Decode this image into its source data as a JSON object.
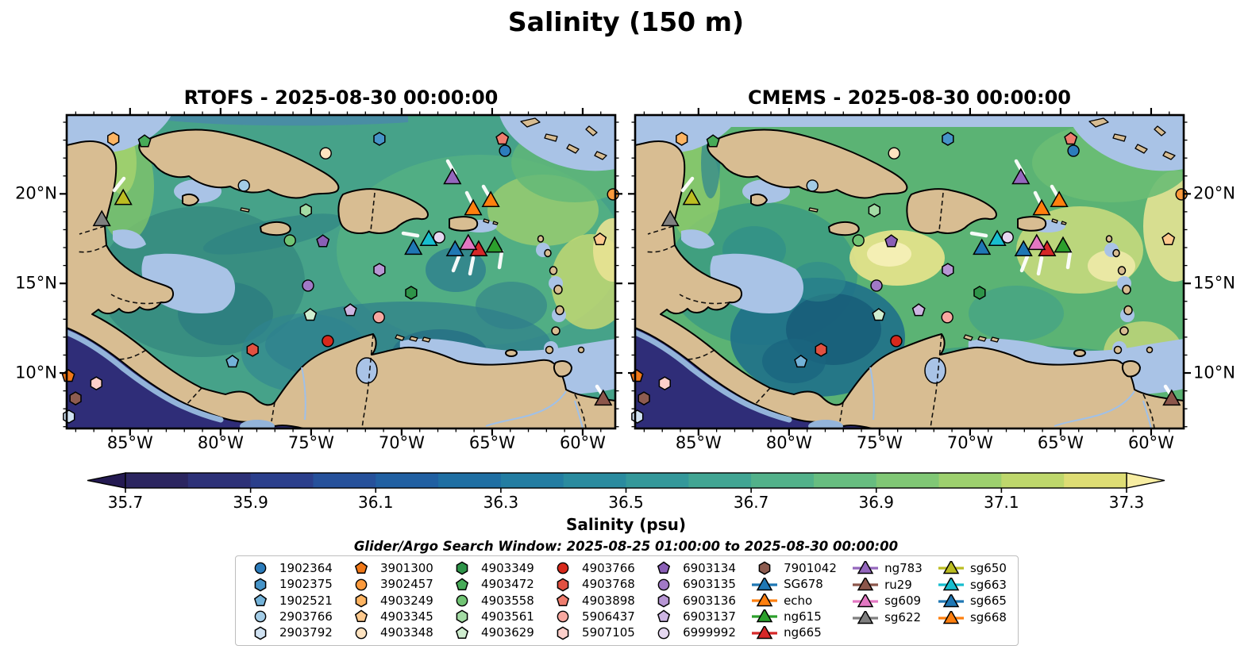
{
  "title": "Salinity (150 m)",
  "panels": [
    {
      "id": "rtofs",
      "title": "RTOFS - 2025-08-30 00:00:00"
    },
    {
      "id": "cmems",
      "title": "CMEMS - 2025-08-30 00:00:00"
    }
  ],
  "axes": {
    "lon_min": 88.5,
    "lon_max": 58.2,
    "lat_min": 6.9,
    "lat_max": 24.4,
    "xticks": [
      {
        "label": "85°W",
        "value": 85
      },
      {
        "label": "80°W",
        "value": 80
      },
      {
        "label": "75°W",
        "value": 75
      },
      {
        "label": "70°W",
        "value": 70
      },
      {
        "label": "65°W",
        "value": 65
      },
      {
        "label": "60°W",
        "value": 60
      }
    ],
    "yticks": [
      {
        "label": "20°N",
        "value": 20
      },
      {
        "label": "15°N",
        "value": 15
      },
      {
        "label": "10°N",
        "value": 10
      }
    ]
  },
  "colorbar": {
    "label": "Salinity (psu)",
    "ticks": [
      "35.7",
      "35.9",
      "36.1",
      "36.3",
      "36.5",
      "36.7",
      "36.9",
      "37.1",
      "37.3"
    ],
    "segment_colors": [
      "#2b2560",
      "#2d3178",
      "#2b3f8c",
      "#26519b",
      "#2160a2",
      "#1f6fa3",
      "#237da2",
      "#2a8b9f",
      "#34989a",
      "#41a593",
      "#52b18a",
      "#67bd80",
      "#80c775",
      "#9dd06e",
      "#bed76c",
      "#dedd74"
    ],
    "under_color": "#241a52",
    "over_color": "#f7eda2"
  },
  "legend": {
    "title": "Glider/Argo Search Window: 2025-08-25 01:00:00 to 2025-08-30 00:00:00",
    "columns": [
      [
        "1902364",
        "1902375",
        "1902521",
        "2903766",
        "2903792"
      ],
      [
        "3901300",
        "3902457",
        "4903249",
        "4903345",
        "4903348"
      ],
      [
        "4903349",
        "4903472",
        "4903558",
        "4903561",
        "4903629"
      ],
      [
        "4903766",
        "4903768",
        "4903898",
        "5906437",
        "5907105"
      ],
      [
        "6903134",
        "6903135",
        "6903136",
        "6903137",
        "6999992"
      ],
      [
        "7901042",
        "SG678",
        "echo",
        "ng615",
        "ng665"
      ],
      [
        "ng783",
        "ru29",
        "sg609",
        "sg622"
      ],
      [
        "sg650",
        "sg663",
        "sg665",
        "sg668"
      ]
    ]
  },
  "markers": [
    {
      "id": "1902364",
      "type": "argo",
      "shape": "circle",
      "color": "#2c7cbb",
      "fx": 0.799,
      "fy": 0.114,
      "lon": -64.3,
      "lat": 22.4
    },
    {
      "id": "1902375",
      "type": "argo",
      "shape": "hexagon",
      "color": "#4694c8",
      "fx": 0.57,
      "fy": 0.076,
      "lon": -71.2,
      "lat": 23.1
    },
    {
      "id": "1902521",
      "type": "argo",
      "shape": "pentagon",
      "color": "#73b2d8",
      "fx": 0.302,
      "fy": 0.787,
      "lon": -79.3,
      "lat": 10.6
    },
    {
      "id": "2903766",
      "type": "argo",
      "shape": "circle",
      "color": "#a3cce6",
      "fx": 0.323,
      "fy": 0.225,
      "lon": -78.7,
      "lat": 20.5
    },
    {
      "id": "2903792",
      "type": "argo",
      "shape": "hexagon",
      "color": "#d0e2f2",
      "fx": 0.004,
      "fy": 0.962,
      "lon": -88.4,
      "lat": 7.6
    },
    {
      "id": "3901300",
      "type": "argo",
      "shape": "pentagon",
      "color": "#f07818",
      "fx": 0.003,
      "fy": 0.833,
      "lon": -88.4,
      "lat": 9.8
    },
    {
      "id": "3902457",
      "type": "argo",
      "shape": "circle",
      "color": "#fb9a3c",
      "fx": 0.996,
      "fy": 0.253,
      "lon": -58.3,
      "lat": 20.0
    },
    {
      "id": "4903249",
      "type": "argo",
      "shape": "hexagon",
      "color": "#fdb462",
      "fx": 0.085,
      "fy": 0.076,
      "lon": -85.9,
      "lat": 23.1
    },
    {
      "id": "4903345",
      "type": "argo",
      "shape": "pentagon",
      "color": "#fdc98d",
      "fx": 0.972,
      "fy": 0.397,
      "lon": -59.1,
      "lat": 17.5
    },
    {
      "id": "4903348",
      "type": "argo",
      "shape": "circle",
      "color": "#fee3c0",
      "fx": 0.472,
      "fy": 0.122,
      "lon": -74.2,
      "lat": 22.3
    },
    {
      "id": "4903349",
      "type": "argo",
      "shape": "hexagon",
      "color": "#2e9449",
      "fx": 0.628,
      "fy": 0.567,
      "lon": -69.5,
      "lat": 14.5
    },
    {
      "id": "4903472",
      "type": "argo",
      "shape": "pentagon",
      "color": "#47ab58",
      "fx": 0.142,
      "fy": 0.084,
      "lon": -84.2,
      "lat": 22.9
    },
    {
      "id": "4903558",
      "type": "argo",
      "shape": "circle",
      "color": "#71c474",
      "fx": 0.407,
      "fy": 0.4,
      "lon": -76.2,
      "lat": 17.4
    },
    {
      "id": "4903561",
      "type": "argo",
      "shape": "hexagon",
      "color": "#a3dba4",
      "fx": 0.436,
      "fy": 0.304,
      "lon": -75.3,
      "lat": 19.1
    },
    {
      "id": "4903629",
      "type": "argo",
      "shape": "pentagon",
      "color": "#d0eed0",
      "fx": 0.444,
      "fy": 0.638,
      "lon": -75.0,
      "lat": 13.2
    },
    {
      "id": "4903766",
      "type": "argo",
      "shape": "circle",
      "color": "#d7291c",
      "fx": 0.476,
      "fy": 0.721,
      "lon": -74.1,
      "lat": 11.8
    },
    {
      "id": "4903768",
      "type": "argo",
      "shape": "hexagon",
      "color": "#e25141",
      "fx": 0.339,
      "fy": 0.749,
      "lon": -78.2,
      "lat": 11.3
    },
    {
      "id": "4903898",
      "type": "argo",
      "shape": "pentagon",
      "color": "#ef7d6e",
      "fx": 0.794,
      "fy": 0.076,
      "lon": -64.4,
      "lat": 23.1
    },
    {
      "id": "5906437",
      "type": "argo",
      "shape": "circle",
      "color": "#f8a8a0",
      "fx": 0.569,
      "fy": 0.645,
      "lon": -71.3,
      "lat": 13.1
    },
    {
      "id": "5907105",
      "type": "argo",
      "shape": "hexagon",
      "color": "#fccfca",
      "fx": 0.054,
      "fy": 0.856,
      "lon": -86.9,
      "lat": 9.4
    },
    {
      "id": "6903134",
      "type": "argo",
      "shape": "pentagon",
      "color": "#8a5fb6",
      "fx": 0.467,
      "fy": 0.403,
      "lon": -74.3,
      "lat": 17.3
    },
    {
      "id": "6903135",
      "type": "argo",
      "shape": "circle",
      "color": "#a179c6",
      "fx": 0.44,
      "fy": 0.544,
      "lon": -75.2,
      "lat": 14.9
    },
    {
      "id": "6903136",
      "type": "argo",
      "shape": "hexagon",
      "color": "#b796d4",
      "fx": 0.57,
      "fy": 0.494,
      "lon": -71.2,
      "lat": 15.8
    },
    {
      "id": "6903137",
      "type": "argo",
      "shape": "pentagon",
      "color": "#cdb5e2",
      "fx": 0.517,
      "fy": 0.623,
      "lon": -72.8,
      "lat": 13.5
    },
    {
      "id": "6999992",
      "type": "argo",
      "shape": "circle",
      "color": "#e5d7f0",
      "fx": 0.679,
      "fy": 0.39,
      "lon": -67.9,
      "lat": 17.6
    },
    {
      "id": "7901042",
      "type": "argo",
      "shape": "hexagon",
      "color": "#8d5c50",
      "fx": 0.016,
      "fy": 0.904,
      "lon": -88.0,
      "lat": 8.6
    },
    {
      "id": "SG678",
      "type": "glider",
      "shape": "triangle",
      "color": "#1f77b4",
      "fx": 0.632,
      "fy": 0.425,
      "lon": -69.4,
      "lat": 17.0
    },
    {
      "id": "echo",
      "type": "glider",
      "shape": "triangle",
      "color": "#ff7f0e",
      "fx": 0.741,
      "fy": 0.299,
      "lon": -66.0,
      "lat": 19.2
    },
    {
      "id": "ng615",
      "type": "glider",
      "shape": "triangle",
      "color": "#2ca02c",
      "fx": 0.78,
      "fy": 0.418,
      "lon": -64.9,
      "lat": 17.1
    },
    {
      "id": "ng665",
      "type": "glider",
      "shape": "triangle",
      "color": "#d62728",
      "fx": 0.751,
      "fy": 0.43,
      "lon": -65.8,
      "lat": 16.9
    },
    {
      "id": "ng783",
      "type": "glider",
      "shape": "triangle",
      "color": "#9467bd",
      "fx": 0.703,
      "fy": 0.2,
      "lon": -67.2,
      "lat": 20.9
    },
    {
      "id": "ru29",
      "type": "glider",
      "shape": "triangle",
      "color": "#8c564b",
      "fx": 0.978,
      "fy": 0.906,
      "lon": -58.9,
      "lat": 8.5
    },
    {
      "id": "sg609",
      "type": "glider",
      "shape": "triangle",
      "color": "#e377c2",
      "fx": 0.732,
      "fy": 0.41,
      "lon": -66.3,
      "lat": 17.2
    },
    {
      "id": "sg622",
      "type": "glider",
      "shape": "triangle",
      "color": "#7f7f7f",
      "fx": 0.064,
      "fy": 0.334,
      "lon": -86.6,
      "lat": 18.5
    },
    {
      "id": "sg650",
      "type": "glider",
      "shape": "triangle",
      "color": "#bcbd22",
      "fx": 0.103,
      "fy": 0.266,
      "lon": -85.4,
      "lat": 19.7
    },
    {
      "id": "sg663",
      "type": "glider",
      "shape": "triangle",
      "color": "#17becf",
      "fx": 0.66,
      "fy": 0.397,
      "lon": -68.5,
      "lat": 17.5
    },
    {
      "id": "sg665",
      "type": "glider",
      "shape": "triangle",
      "color": "#1f77b4",
      "fx": 0.708,
      "fy": 0.43,
      "lon": -67.1,
      "lat": 16.9
    },
    {
      "id": "sg668",
      "type": "glider",
      "shape": "triangle",
      "color": "#ff7f0e",
      "fx": 0.773,
      "fy": 0.273,
      "lon": -65.1,
      "lat": 19.6
    }
  ],
  "chart_data": {
    "type": "heatmap",
    "title": "Salinity (150 m)",
    "subtitle_left": "RTOFS - 2025-08-30 00:00:00",
    "subtitle_right": "CMEMS - 2025-08-30 00:00:00",
    "variable": "Salinity (psu)",
    "colorbar_ticks": [
      35.7,
      35.9,
      36.1,
      36.3,
      36.5,
      36.7,
      36.9,
      37.1,
      37.3
    ],
    "colorbar_range": [
      35.7,
      37.3
    ],
    "colorbar_extended_both_ends": true,
    "lon_range_degW": [
      88.5,
      58.2
    ],
    "lat_range_degN": [
      6.9,
      24.4
    ],
    "xtick_labels": [
      "85°W",
      "80°W",
      "75°W",
      "70°W",
      "65°W",
      "60°W"
    ],
    "ytick_labels": [
      "20°N",
      "15°N",
      "10°N"
    ],
    "legend_note": "Glider/Argo Search Window: 2025-08-25 01:00:00 to 2025-08-30 00:00:00",
    "platform_count": 38
  }
}
